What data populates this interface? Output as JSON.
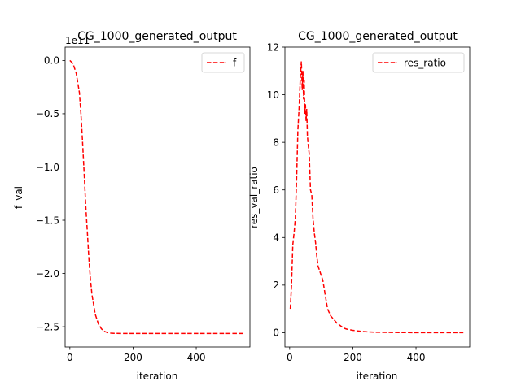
{
  "chart_data": [
    {
      "type": "line",
      "title": "CG_1000_generated_output",
      "xlabel": "iteration",
      "ylabel": "f_val",
      "offset_text": "1e11",
      "xlim": [
        -15,
        570
      ],
      "ylim": [
        -2.69,
        0.125
      ],
      "xticks": [
        0,
        200,
        400
      ],
      "xtick_labels": [
        "0",
        "200",
        "400"
      ],
      "yticks": [
        0.0,
        -0.5,
        -1.0,
        -1.5,
        -2.0,
        -2.5
      ],
      "ytick_labels": [
        "0.0",
        "−0.5",
        "−1.0",
        "−1.5",
        "−2.0",
        "−2.5"
      ],
      "legend": {
        "position": "upper right"
      },
      "grid": false,
      "series": [
        {
          "name": "f",
          "color": "#ff0000",
          "style": "dashed",
          "x": [
            0,
            10,
            20,
            30,
            35,
            40,
            45,
            50,
            55,
            60,
            65,
            70,
            80,
            90,
            100,
            110,
            120,
            130,
            140,
            160,
            200,
            300,
            400,
            550
          ],
          "y": [
            0.0,
            -0.03,
            -0.12,
            -0.3,
            -0.5,
            -0.75,
            -1.05,
            -1.35,
            -1.6,
            -1.85,
            -2.05,
            -2.2,
            -2.38,
            -2.47,
            -2.52,
            -2.545,
            -2.555,
            -2.56,
            -2.562,
            -2.563,
            -2.563,
            -2.563,
            -2.563,
            -2.563
          ]
        }
      ]
    },
    {
      "type": "line",
      "title": "CG_1000_generated_output",
      "xlabel": "iteration",
      "ylabel": "res_val_ratio",
      "xlim": [
        -15,
        570
      ],
      "ylim": [
        -0.6,
        12.0
      ],
      "xticks": [
        0,
        200,
        400
      ],
      "xtick_labels": [
        "0",
        "200",
        "400"
      ],
      "yticks": [
        0,
        2,
        4,
        6,
        8,
        10,
        12
      ],
      "ytick_labels": [
        "0",
        "2",
        "4",
        "6",
        "8",
        "10",
        "12"
      ],
      "legend": {
        "position": "upper right"
      },
      "grid": false,
      "series": [
        {
          "name": "res_ratio",
          "color": "#ff0000",
          "style": "dashed",
          "x": [
            2,
            6,
            10,
            14,
            18,
            22,
            26,
            30,
            34,
            37,
            40,
            42,
            44,
            46,
            48,
            50,
            52,
            54,
            56,
            58,
            62,
            66,
            70,
            74,
            78,
            82,
            86,
            90,
            95,
            100,
            105,
            110,
            115,
            120,
            125,
            130,
            140,
            150,
            160,
            170,
            180,
            200,
            230,
            270,
            320,
            400,
            550
          ],
          "y": [
            1.0,
            2.0,
            3.7,
            4.2,
            4.8,
            6.5,
            8.5,
            9.5,
            10.8,
            11.4,
            10.2,
            11.0,
            9.8,
            10.6,
            9.2,
            9.6,
            8.9,
            9.4,
            8.3,
            8.0,
            7.5,
            6.0,
            5.8,
            4.8,
            4.2,
            3.8,
            3.2,
            2.8,
            2.6,
            2.4,
            2.2,
            1.8,
            1.4,
            1.0,
            0.85,
            0.7,
            0.55,
            0.4,
            0.3,
            0.2,
            0.15,
            0.1,
            0.05,
            0.02,
            0.01,
            0.0,
            0.0
          ]
        }
      ]
    }
  ]
}
